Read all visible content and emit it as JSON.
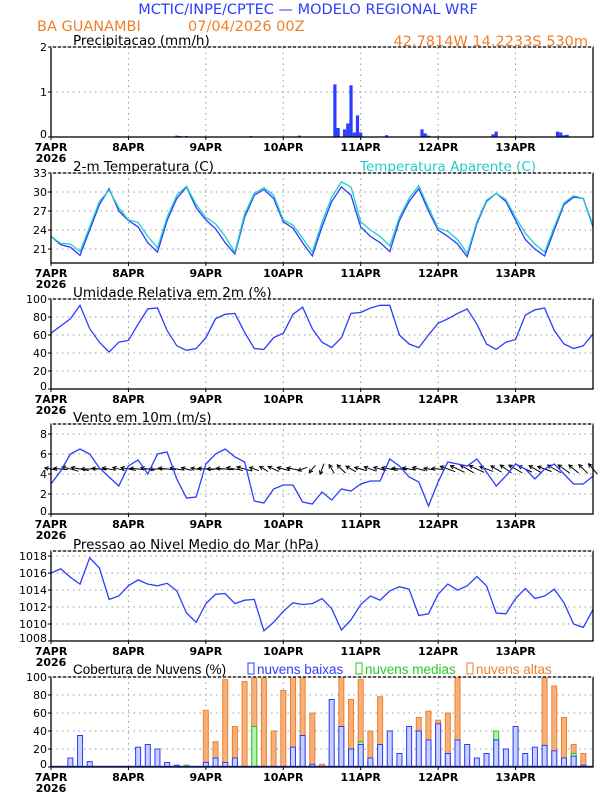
{
  "header": {
    "title": "MCTIC/INPE/CPTEC — MODELO REGIONAL WRF",
    "station": "BA GUANAMBI",
    "run": "07/04/2026 00Z",
    "location": "42.7814W 14.2233S 530m"
  },
  "colors": {
    "blue": "#2a3dff",
    "orange": "#f07f2a",
    "cyan": "#22cccc",
    "green": "#22cc22",
    "black": "#000000"
  },
  "x_axis": {
    "labels": [
      "7APR",
      "8APR",
      "9APR",
      "10APR",
      "11APR",
      "12APR",
      "13APR"
    ],
    "year": "2026",
    "hours_range": [
      0,
      168
    ],
    "step_hours": 3
  },
  "chart_data": [
    {
      "type": "bar",
      "title": "Precipitacao (mm/h)",
      "ylabel": "mm/h",
      "ylim": [
        0,
        2
      ],
      "yticks": [
        0,
        1,
        2
      ],
      "bars": [
        [
          39,
          0.03
        ],
        [
          40,
          0.02
        ],
        [
          42,
          0.02
        ],
        [
          62,
          0.02
        ],
        [
          77,
          0.03
        ],
        [
          88,
          1.17
        ],
        [
          89,
          0.2
        ],
        [
          91,
          0.17
        ],
        [
          92,
          0.3
        ],
        [
          93,
          1.15
        ],
        [
          94,
          0.1
        ],
        [
          95,
          0.48
        ],
        [
          96,
          0.1
        ],
        [
          104,
          0.04
        ],
        [
          115,
          0.17
        ],
        [
          116,
          0.08
        ],
        [
          117,
          0.03
        ],
        [
          137,
          0.06
        ],
        [
          138,
          0.12
        ],
        [
          157,
          0.12
        ],
        [
          158,
          0.1
        ],
        [
          159,
          0.04
        ],
        [
          160,
          0.05
        ]
      ]
    },
    {
      "type": "line",
      "title": "2-m Temperatura (C)",
      "legend": "Temperatura Aparente (C)",
      "ylim": [
        18.8,
        33
      ],
      "yticks": [
        21,
        24,
        27,
        30,
        33
      ],
      "series": [
        {
          "name": "Temperatura 2m",
          "color": "#2a3dff",
          "values": [
            23,
            21.7,
            21.3,
            20.0,
            24,
            28,
            30.5,
            27,
            25.5,
            24.5,
            22,
            20.5,
            25.5,
            29,
            30.8,
            27.5,
            25.6,
            24.2,
            22,
            20.2,
            26,
            29.5,
            30.4,
            29,
            25.3,
            24.3,
            22,
            19.9,
            24.5,
            28.5,
            30.8,
            29.5,
            24.5,
            23,
            22,
            20.6,
            25.5,
            28.5,
            30.5,
            27,
            24,
            23,
            21.8,
            19.8,
            25,
            28.5,
            29.8,
            28.5,
            25.5,
            22.5,
            21,
            19.9,
            24,
            28,
            29.2,
            29,
            24.5
          ]
        },
        {
          "name": "Temperatura Aparente",
          "color": "#22cccc",
          "values": [
            23,
            21.9,
            21.8,
            20.6,
            24.5,
            28.5,
            30.3,
            27.5,
            25.6,
            25.2,
            23,
            21.2,
            26,
            29.5,
            30.9,
            28,
            26,
            25,
            23,
            20.5,
            26.5,
            29.8,
            30.7,
            29.5,
            25.6,
            24.8,
            22.7,
            20.5,
            25.2,
            29.2,
            31.6,
            30.8,
            25.3,
            24,
            23,
            21.5,
            26,
            29,
            31,
            27.5,
            24.3,
            23.8,
            22.5,
            20.3,
            25.3,
            28.7,
            29.8,
            28.8,
            26,
            23.5,
            21.8,
            20.5,
            24.5,
            28.3,
            29.4,
            29,
            24.8
          ]
        }
      ]
    },
    {
      "type": "line",
      "title": "Umidade Relativa em 2m (%)",
      "ylim": [
        0,
        100
      ],
      "yticks": [
        0,
        20,
        40,
        60,
        80,
        100
      ],
      "series": [
        {
          "name": "Umidade Relativa",
          "color": "#2a3dff",
          "values": [
            62,
            70,
            78,
            93,
            67,
            52,
            41,
            52,
            54,
            72,
            89,
            90,
            65,
            48,
            43,
            45,
            57,
            78,
            83,
            84,
            63,
            45,
            44,
            57,
            62,
            83,
            91,
            67,
            52,
            46,
            57,
            84,
            85,
            90,
            93,
            93,
            60,
            50,
            46,
            60,
            73,
            78,
            84,
            89,
            72,
            50,
            44,
            52,
            55,
            82,
            88,
            90,
            65,
            50,
            45,
            48,
            61
          ]
        }
      ]
    },
    {
      "type": "line",
      "title": "Vento em 10m (m/s)",
      "ylim": [
        0,
        9
      ],
      "yticks": [
        0,
        2,
        4,
        6,
        8
      ],
      "series": [
        {
          "name": "Velocidade do vento",
          "color": "#2a3dff",
          "values": [
            3,
            4.3,
            6,
            6.5,
            6,
            4.6,
            3.7,
            2.8,
            4.8,
            5.4,
            4.0,
            6.0,
            6.2,
            3.5,
            1.6,
            1.7,
            5.0,
            6.0,
            6.5,
            5.7,
            5.2,
            1.3,
            1.1,
            2.5,
            2.9,
            2.9,
            1.2,
            1.0,
            2.2,
            1.4,
            2.5,
            2.3,
            3.0,
            3.3,
            3.3,
            5.5,
            4.8,
            3.7,
            3.2,
            0.8,
            3.2,
            5.2,
            5.0,
            4.8,
            5.5,
            4.2,
            2.8,
            3.8,
            5.0,
            4.5,
            3.5,
            4.5,
            5.0,
            4.0,
            3.0,
            3.0,
            3.8
          ]
        }
      ],
      "wind_arrows": {
        "baseline": 4.5,
        "direction_deg": [
          170,
          175,
          165,
          170,
          180,
          175,
          170,
          165,
          170,
          175,
          170,
          180,
          175,
          170,
          165,
          170,
          175,
          180,
          175,
          170,
          165,
          160,
          150,
          155,
          165,
          170,
          200,
          230,
          250,
          120,
          135,
          150,
          165,
          160,
          165,
          170,
          175,
          170,
          165,
          170,
          175,
          160,
          155,
          150,
          155,
          160,
          150,
          145,
          150,
          155,
          150,
          160,
          150,
          145,
          140,
          135,
          130
        ]
      }
    },
    {
      "type": "line",
      "title": "Pressao ao Nivel Medio do Mar (hPa)",
      "ylim": [
        1008,
        1018.6
      ],
      "yticks": [
        1008,
        1010,
        1012,
        1014,
        1016,
        1018
      ],
      "series": [
        {
          "name": "Pressao",
          "color": "#2a3dff",
          "values": [
            1016,
            1016.5,
            1015.5,
            1014.7,
            1017.8,
            1016.6,
            1012.9,
            1013.3,
            1014.5,
            1015.2,
            1014.7,
            1014.5,
            1014.8,
            1013.9,
            1011.3,
            1010.2,
            1012.4,
            1013.5,
            1013.6,
            1012.4,
            1012.8,
            1012.9,
            1009.2,
            1010.2,
            1011.5,
            1012.5,
            1012.3,
            1012.4,
            1013,
            1011.8,
            1009.3,
            1010.5,
            1012.3,
            1013.3,
            1012.8,
            1013.9,
            1014.4,
            1014.1,
            1011,
            1011.2,
            1013.5,
            1014.7,
            1014,
            1014.5,
            1015.6,
            1014.5,
            1011.3,
            1011.2,
            1013,
            1014.2,
            1013,
            1013.3,
            1014.1,
            1012.5,
            1010,
            1009.6,
            1011.7
          ]
        }
      ]
    },
    {
      "type": "bar",
      "title": "Cobertura de Nuvens (%)",
      "ylim": [
        0,
        100
      ],
      "yticks": [
        0,
        20,
        40,
        60,
        80,
        100
      ],
      "series": [
        {
          "name": "nuvens altas",
          "color": "#f07f2a",
          "fill": "#f6b07a",
          "values": [
            0,
            0,
            0,
            0,
            0,
            0,
            0,
            0,
            0,
            0,
            0,
            0,
            0,
            0,
            0,
            0,
            63,
            28,
            97,
            45,
            95,
            100,
            100,
            40,
            85,
            100,
            100,
            60,
            3,
            20,
            100,
            75,
            97,
            40,
            78,
            10,
            0,
            15,
            55,
            62,
            52,
            60,
            100,
            10,
            0,
            0,
            0,
            0,
            0,
            0,
            0,
            100,
            90,
            55,
            25,
            15,
            0
          ]
        },
        {
          "name": "nuvens medias",
          "color": "#22cc22",
          "fill": "#b4f0b4",
          "values": [
            0,
            0,
            0,
            0,
            0,
            0,
            0,
            0,
            0,
            0,
            0,
            0,
            0,
            0,
            2,
            0,
            0,
            0,
            0,
            0,
            0,
            45,
            0,
            0,
            0,
            0,
            10,
            0,
            0,
            0,
            18,
            15,
            28,
            5,
            0,
            0,
            8,
            0,
            0,
            0,
            15,
            0,
            0,
            0,
            0,
            12,
            40,
            0,
            0,
            0,
            0,
            0,
            0,
            0,
            15,
            0,
            0
          ]
        },
        {
          "name": "nuvens baixas",
          "color": "#2a3dff",
          "fill": "#c8d0ff",
          "values": [
            0,
            0,
            10,
            35,
            6,
            0,
            0,
            0,
            0,
            22,
            25,
            20,
            5,
            2,
            0,
            0,
            5,
            10,
            5,
            10,
            0,
            0,
            0,
            0,
            0,
            22,
            35,
            3,
            0,
            75,
            45,
            20,
            25,
            10,
            25,
            40,
            15,
            45,
            40,
            30,
            48,
            15,
            30,
            25,
            10,
            15,
            30,
            20,
            45,
            15,
            22,
            24,
            18,
            10,
            12,
            2,
            0
          ]
        }
      ],
      "legend": [
        "nuvens baixas",
        "nuvens medias",
        "nuvens altas"
      ]
    }
  ]
}
